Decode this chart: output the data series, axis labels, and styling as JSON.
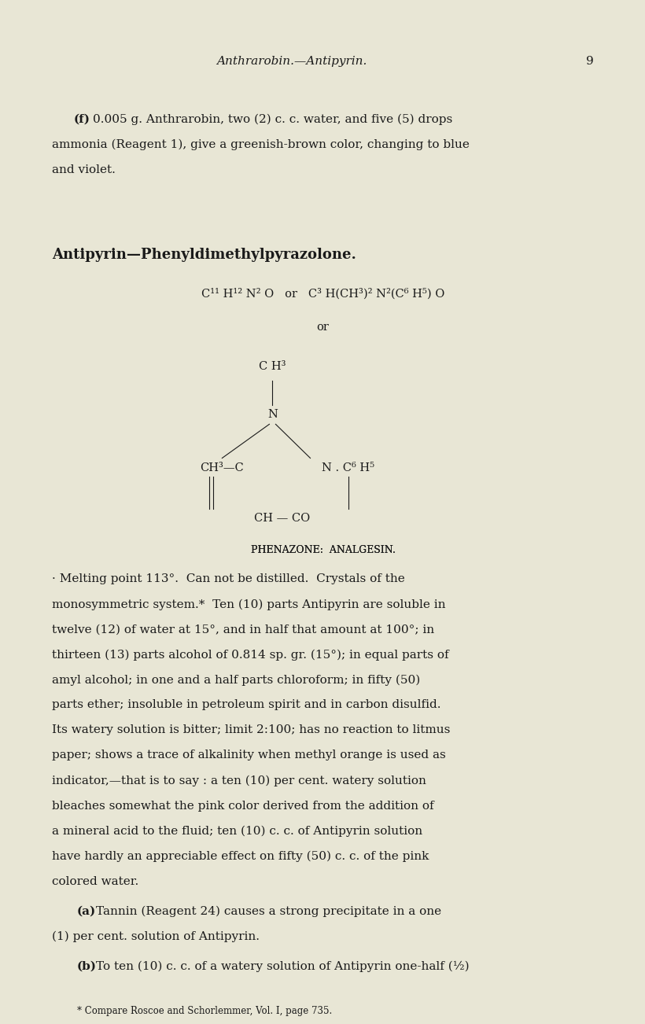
{
  "bg_color": "#e8e6d5",
  "text_color": "#1a1a1a",
  "page_width": 8.01,
  "page_height": 12.73,
  "header_italic": "Anthrarobin.—Antipyrin.",
  "header_page_num": "9",
  "section_f_text": "(f)  0.005 g. Anthrarobin, two (2) c. c. water, and five (5) drops\nammonia (Reagent 1), give a greenish-brown color, changing to blue\nand violet.",
  "section_title": "Antipyrin—Phenyldimethylpyrazolone.",
  "formula_line1": "C¹¹ H¹² N² O   or   C³ H(CH³)² N²(C⁶ H⁵) O",
  "formula_or": "or",
  "struct_ch3_top": "C H³",
  "struct_n": "N",
  "struct_ch3c_left": "CH³—C",
  "struct_n_right": "N . C⁶ H⁵",
  "struct_ch_co": "CH — CO",
  "phenazone_label": "PHENAZONE:  ANALGESIN.",
  "body_text": "· Melting point 113°. Can not be distilled. Crystals of the\nmonosymmetric system.*  Ten (10) parts Antipyrin are soluble in\ntwelve (12) of water at 15°, and in half that amount at 100°; in\nthirteen (13) parts alcohol of 0.814 sp. gr. (15°); in equal parts of\namyl alcohol; in one and a half parts chloroform; in fifty (50)\nparts ether; insoluble in petroleum spirit and in carbon disulfid.\nIts watery solution is bitter; limit 2:100; has no reaction to litmus\npaper; shows a trace of alkalinity when methyl orange is used as\nindicator,—that is to say : a ten (10) per cent. watery solution\nbleaches somewhat the pink color derived from the addition of\na mineral acid to the fluid; ten (10) c. c. of Antipyrin solution\nhave hardly an appreciable effect on fifty (50) c. c. of the pink\ncolored water.",
  "item_a": "(a)  Tannin (Reagent 24) causes a strong precipitate in a one\n(1) per cent. solution of Antipyrin.",
  "item_b": "(b)  To ten (10) c. c. of a watery solution of Antipyrin one-half (½)",
  "footnote": "* Compare Roscoe and Schorlemmer, Vol. I, page 735."
}
